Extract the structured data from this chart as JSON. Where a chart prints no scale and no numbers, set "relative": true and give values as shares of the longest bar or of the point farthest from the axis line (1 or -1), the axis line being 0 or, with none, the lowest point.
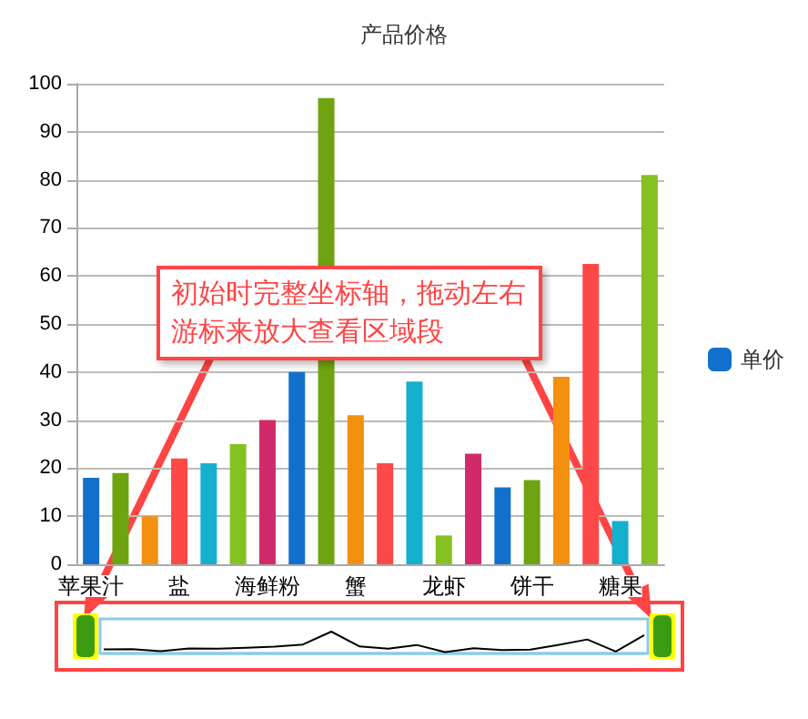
{
  "chart_data": [
    {
      "type": "bar",
      "title": "产品价格",
      "categories": [
        "苹果汁",
        null,
        null,
        "盐",
        null,
        null,
        "海鲜粉",
        null,
        null,
        "蟹",
        null,
        null,
        "龙虾",
        null,
        null,
        "饼干",
        null,
        null,
        "糖果",
        null
      ],
      "series": [
        {
          "name": "单价",
          "color": "#1270cc",
          "values": [
            18,
            19,
            10,
            22,
            21,
            25,
            30,
            40,
            97,
            31,
            21,
            38,
            6,
            23,
            16,
            17.5,
            39,
            62.5,
            9,
            81
          ],
          "colors": [
            "#1270cc",
            "#6ea410",
            "#f5900f",
            "#ff4848",
            "#16b0cf",
            "#86c122",
            "#d12a6a",
            "#1270cc",
            "#6ea410",
            "#f5900f",
            "#ff4848",
            "#16b0cf",
            "#86c122",
            "#d12a6a",
            "#1270cc",
            "#6ea410",
            "#f5900f",
            "#ff4848",
            "#16b0cf",
            "#86c122"
          ]
        }
      ],
      "ylim": [
        0,
        100
      ],
      "yticks": [
        0,
        10,
        20,
        30,
        40,
        50,
        60,
        70,
        80,
        90,
        100
      ],
      "grid": "y",
      "legend": "right",
      "annotations": [
        "初始时完整坐标轴，拖动左右游标来放大查看区域段"
      ]
    },
    {
      "type": "line",
      "relative": true,
      "marker": "none",
      "categories": [
        null,
        null,
        null,
        null,
        null,
        null,
        null,
        null,
        null,
        null,
        null,
        null,
        null,
        null,
        null,
        null,
        null,
        null,
        null,
        null
      ],
      "series": [
        {
          "color": "#000000",
          "values": [
            0.19,
            0.2,
            0.1,
            0.23,
            0.22,
            0.26,
            0.31,
            0.41,
            1,
            0.32,
            0.22,
            0.39,
            0.06,
            0.24,
            0.16,
            0.18,
            0.4,
            0.64,
            0.09,
            0.84
          ]
        }
      ]
    }
  ]
}
